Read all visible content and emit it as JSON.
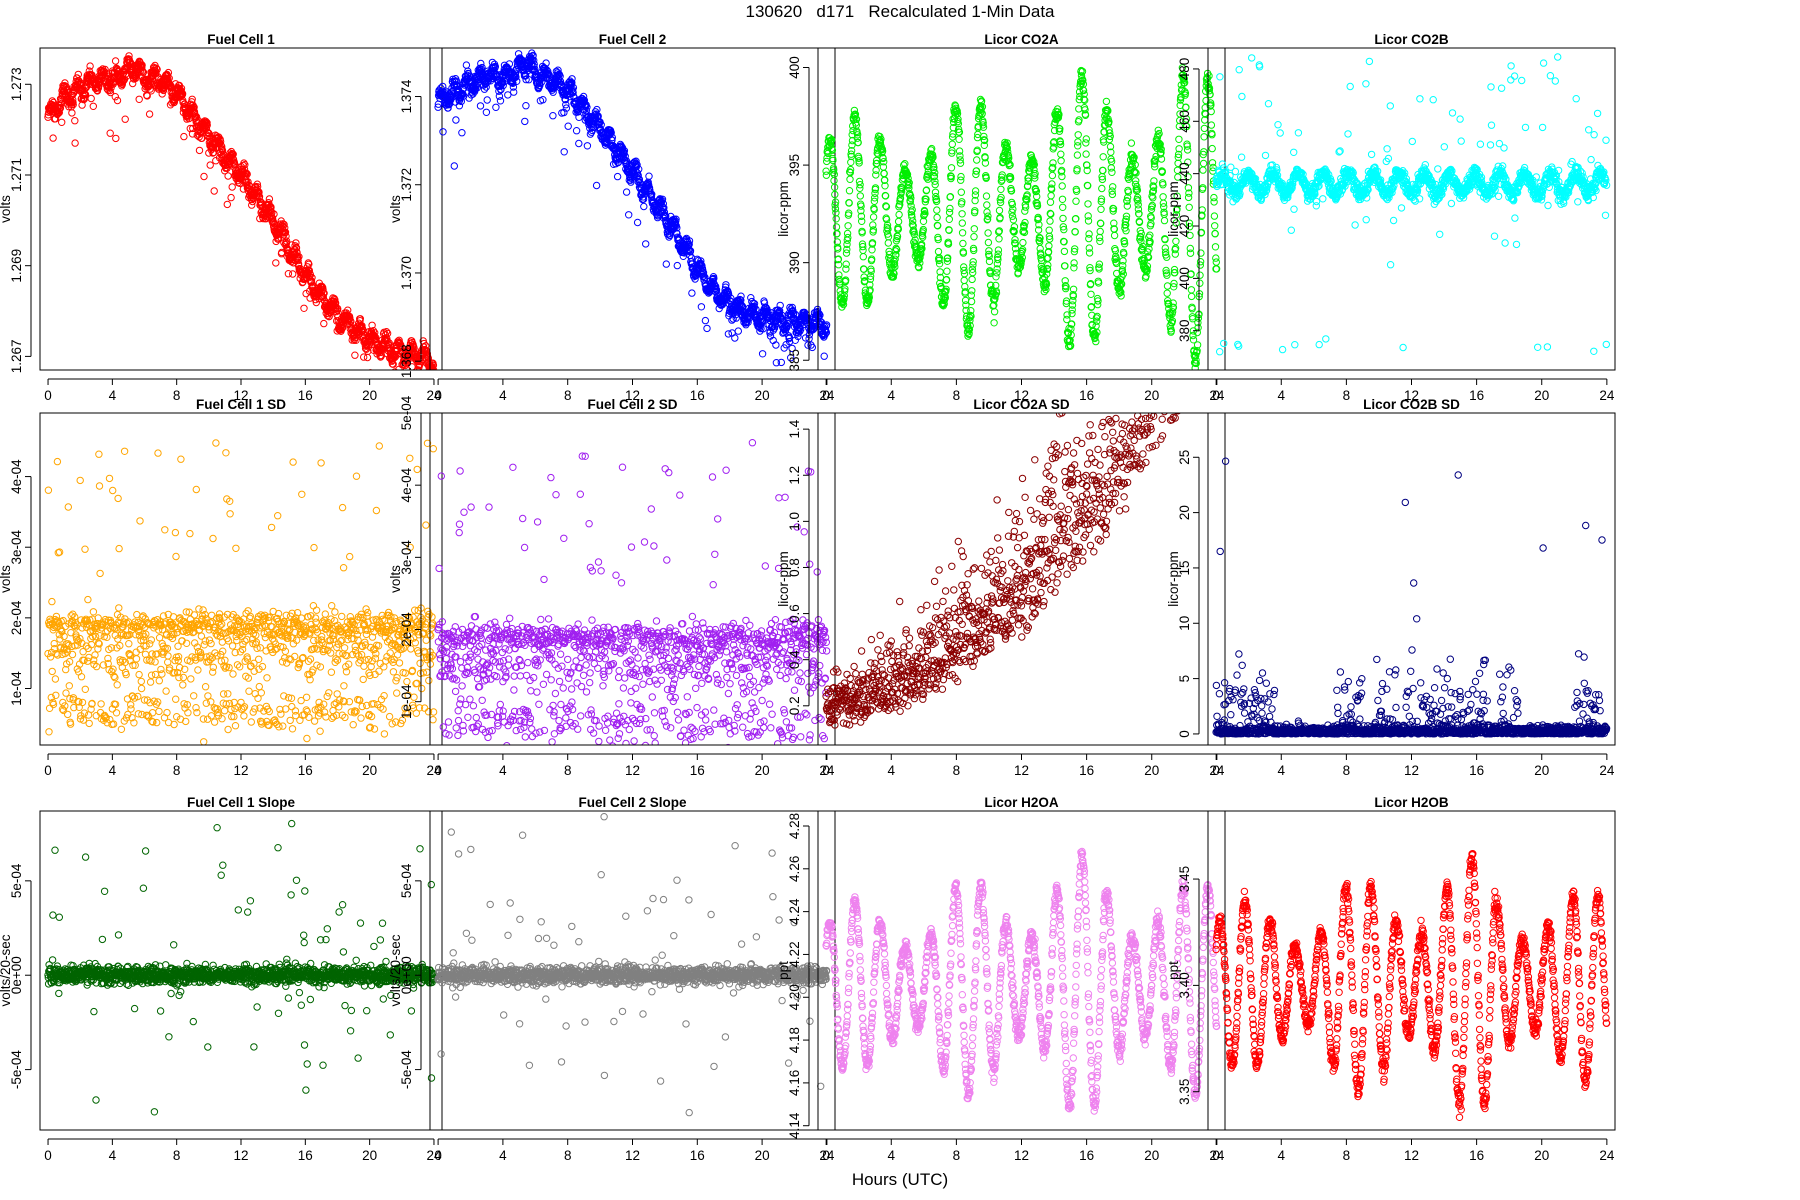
{
  "figure": {
    "title": "130620   d171   Recalculated 1-Min Data",
    "xlabel": "Hours (UTC)"
  },
  "chart_data": [
    {
      "id": "fc1",
      "type": "scatter",
      "title": "Fuel Cell 1",
      "ylabel": "volts",
      "color": "#ff0000",
      "xlim": [
        -0.5,
        24.5
      ],
      "ylim": [
        1.2667,
        1.2738
      ],
      "xticks": [
        0,
        4,
        8,
        12,
        16,
        20,
        24
      ],
      "xtick_labels": [
        "0",
        "4",
        "8",
        "12",
        "16",
        "20",
        "24"
      ],
      "yticks": [
        1.267,
        1.269,
        1.271,
        1.273
      ],
      "ytick_labels": [
        "1.267",
        "1.269",
        "1.271",
        "1.273"
      ],
      "x": [
        0,
        1,
        2,
        3,
        4,
        5,
        5.5,
        6,
        7,
        8,
        9,
        10,
        11,
        12,
        13,
        14,
        15,
        16,
        17,
        18,
        19,
        20,
        21,
        22,
        23,
        24
      ],
      "y": [
        1.2723,
        1.2727,
        1.2729,
        1.2731,
        1.2731,
        1.2733,
        1.2734,
        1.2731,
        1.2731,
        1.2728,
        1.2723,
        1.2719,
        1.2714,
        1.271,
        1.2705,
        1.27,
        1.2694,
        1.2688,
        1.2683,
        1.2679,
        1.2676,
        1.2674,
        1.2672,
        1.2671,
        1.267,
        1.2669
      ],
      "style": "band"
    },
    {
      "id": "fc2",
      "type": "scatter",
      "title": "Fuel Cell 2",
      "ylabel": "volts",
      "color": "#0000ff",
      "xlim": [
        -0.5,
        24.5
      ],
      "ylim": [
        1.3678,
        1.3751
      ],
      "xticks": [
        0,
        4,
        8,
        12,
        16,
        20,
        24
      ],
      "xtick_labels": [
        "0",
        "4",
        "8",
        "12",
        "16",
        "20",
        "24"
      ],
      "yticks": [
        1.368,
        1.37,
        1.372,
        1.374
      ],
      "ytick_labels": [
        "1.368",
        "1.370",
        "1.372",
        "1.374"
      ],
      "x": [
        0,
        1,
        2,
        3,
        4,
        5,
        5.5,
        6,
        7,
        8,
        9,
        10,
        11,
        12,
        13,
        14,
        15,
        16,
        17,
        18,
        19,
        20,
        21,
        22,
        23,
        24
      ],
      "y": [
        1.3739,
        1.3741,
        1.3743,
        1.3745,
        1.3744,
        1.3746,
        1.3748,
        1.3745,
        1.3744,
        1.3741,
        1.3737,
        1.3733,
        1.3728,
        1.3723,
        1.3718,
        1.3713,
        1.3707,
        1.3701,
        1.3696,
        1.3693,
        1.3691,
        1.369,
        1.3689,
        1.3689,
        1.3689,
        1.3688
      ],
      "style": "band"
    },
    {
      "id": "co2a",
      "type": "scatter",
      "title": "Licor CO2A",
      "ylabel": "licor-ppm",
      "color": "#00ee00",
      "xlim": [
        -0.5,
        24.5
      ],
      "ylim": [
        384.5,
        401
      ],
      "xticks": [
        0,
        4,
        8,
        12,
        16,
        20,
        24
      ],
      "xtick_labels": [
        "0",
        "4",
        "8",
        "12",
        "16",
        "20",
        "24"
      ],
      "yticks": [
        385,
        390,
        395,
        400
      ],
      "ytick_labels": [
        "385",
        "390",
        "395",
        "400"
      ],
      "base": 392.5,
      "amp": [
        5,
        5.5,
        6,
        6.5,
        7,
        7,
        7.5
      ],
      "period": 1.55,
      "style": "wave"
    },
    {
      "id": "co2b",
      "type": "scatter",
      "title": "Licor CO2B",
      "ylabel": "licor-ppm",
      "color": "#00ffff",
      "xlim": [
        -0.5,
        24.5
      ],
      "ylim": [
        365,
        488
      ],
      "xticks": [
        0,
        4,
        8,
        12,
        16,
        20,
        24
      ],
      "xtick_labels": [
        "0",
        "4",
        "8",
        "12",
        "16",
        "20",
        "24"
      ],
      "yticks": [
        380,
        400,
        420,
        440,
        460,
        480
      ],
      "ytick_labels": [
        "380",
        "400",
        "420",
        "440",
        "460",
        "480"
      ],
      "base": 436,
      "amp": [
        4,
        4,
        4,
        4,
        4,
        4,
        4
      ],
      "period": 1.55,
      "style": "wave_outliers"
    },
    {
      "id": "fc1sd",
      "type": "scatter",
      "title": "Fuel Cell 1 SD",
      "ylabel": "volts",
      "color": "#ffa500",
      "xlim": [
        -0.5,
        24.5
      ],
      "ylim": [
        2e-05,
        0.00049
      ],
      "xticks": [
        0,
        4,
        8,
        12,
        16,
        20,
        24
      ],
      "xtick_labels": [
        "0",
        "4",
        "8",
        "12",
        "16",
        "20",
        "24"
      ],
      "yticks": [
        0.0001,
        0.0002,
        0.0003,
        0.0004
      ],
      "ytick_labels": [
        "1e-04",
        "2e-04",
        "3e-04",
        "4e-04"
      ],
      "style": "sd"
    },
    {
      "id": "fc2sd",
      "type": "scatter",
      "title": "Fuel Cell 2 SD",
      "ylabel": "volts",
      "color": "#a020f0",
      "xlim": [
        -0.5,
        24.5
      ],
      "ylim": [
        4e-05,
        0.0005
      ],
      "xticks": [
        0,
        4,
        8,
        12,
        16,
        20,
        24
      ],
      "xtick_labels": [
        "0",
        "4",
        "8",
        "12",
        "16",
        "20",
        "24"
      ],
      "yticks": [
        0.0001,
        0.0002,
        0.0003,
        0.0004,
        0.0005
      ],
      "ytick_labels": [
        "1e-04",
        "2e-04",
        "3e-04",
        "4e-04",
        "5e-04"
      ],
      "style": "sd"
    },
    {
      "id": "co2asd",
      "type": "scatter",
      "title": "Licor CO2A SD",
      "ylabel": "licor-ppm",
      "color": "#8b0000",
      "xlim": [
        -0.5,
        24.5
      ],
      "ylim": [
        0.03,
        1.47
      ],
      "xticks": [
        0,
        4,
        8,
        12,
        16,
        20,
        24
      ],
      "xtick_labels": [
        "0",
        "4",
        "8",
        "12",
        "16",
        "20",
        "24"
      ],
      "yticks": [
        0.2,
        0.4,
        0.6,
        0.8,
        1.0,
        1.2,
        1.4
      ],
      "ytick_labels": [
        "0.2",
        "0.4",
        "0.6",
        "0.8",
        "1.0",
        "1.2",
        "1.4"
      ],
      "style": "rising"
    },
    {
      "id": "co2bsd",
      "type": "scatter",
      "title": "Licor CO2B SD",
      "ylabel": "licor-ppm",
      "color": "#000080",
      "xlim": [
        -0.5,
        24.5
      ],
      "ylim": [
        -1,
        29
      ],
      "xticks": [
        0,
        4,
        8,
        12,
        16,
        20,
        24
      ],
      "xtick_labels": [
        "0",
        "4",
        "8",
        "12",
        "16",
        "20",
        "24"
      ],
      "yticks": [
        0,
        5,
        10,
        15,
        20,
        25
      ],
      "ytick_labels": [
        "0",
        "5",
        "10",
        "15",
        "20",
        "25"
      ],
      "style": "spiky"
    },
    {
      "id": "fc1slope",
      "type": "scatter",
      "title": "Fuel Cell 1 Slope",
      "ylabel": "volts/20-sec",
      "color": "#006400",
      "xlim": [
        -0.5,
        24.5
      ],
      "ylim": [
        -0.00082,
        0.00087
      ],
      "xticks": [
        0,
        4,
        8,
        12,
        16,
        20,
        24
      ],
      "xtick_labels": [
        "0",
        "4",
        "8",
        "12",
        "16",
        "20",
        "24"
      ],
      "yticks": [
        -0.0005,
        0,
        0.0005
      ],
      "ytick_labels": [
        "-5e-04",
        "0e+00",
        "5e-04"
      ],
      "style": "slope"
    },
    {
      "id": "fc2slope",
      "type": "scatter",
      "title": "Fuel Cell 2 Slope",
      "ylabel": "volts/20-sec",
      "color": "#808080",
      "xlim": [
        -0.5,
        24.5
      ],
      "ylim": [
        -0.00082,
        0.00087
      ],
      "xticks": [
        0,
        4,
        8,
        12,
        16,
        20,
        24
      ],
      "xtick_labels": [
        "0",
        "4",
        "8",
        "12",
        "16",
        "20",
        "24"
      ],
      "yticks": [
        -0.0005,
        0,
        0.0005
      ],
      "ytick_labels": [
        "-5e-04",
        "0e+00",
        "5e-04"
      ],
      "style": "slope"
    },
    {
      "id": "h2oa",
      "type": "scatter",
      "title": "Licor H2OA",
      "ylabel": "ppt",
      "color": "#ee82ee",
      "xlim": [
        -0.5,
        24.5
      ],
      "ylim": [
        4.138,
        4.287
      ],
      "xticks": [
        0,
        4,
        8,
        12,
        16,
        20,
        24
      ],
      "xtick_labels": [
        "0",
        "4",
        "8",
        "12",
        "16",
        "20",
        "24"
      ],
      "yticks": [
        4.14,
        4.16,
        4.18,
        4.2,
        4.22,
        4.24,
        4.26,
        4.28
      ],
      "ytick_labels": [
        "4.14",
        "4.16",
        "4.18",
        "4.20",
        "4.22",
        "4.24",
        "4.26",
        "4.28"
      ],
      "base": 4.205,
      "amp": [
        0.04,
        0.045,
        0.05,
        0.055,
        0.06,
        0.055,
        0.05
      ],
      "period": 1.55,
      "style": "wave"
    },
    {
      "id": "h2ob",
      "type": "scatter",
      "title": "Licor H2OB",
      "ylabel": "ppt",
      "color": "#ff0000",
      "xlim": [
        -0.5,
        24.5
      ],
      "ylim": [
        3.332,
        3.482
      ],
      "xticks": [
        0,
        4,
        8,
        12,
        16,
        20,
        24
      ],
      "xtick_labels": [
        "0",
        "4",
        "8",
        "12",
        "16",
        "20",
        "24"
      ],
      "yticks": [
        3.35,
        3.4,
        3.45
      ],
      "ytick_labels": [
        "3.35",
        "3.40",
        "3.45"
      ],
      "base": 3.4,
      "amp": [
        0.04,
        0.045,
        0.05,
        0.055,
        0.06,
        0.05,
        0.045
      ],
      "period": 1.55,
      "style": "wave"
    }
  ]
}
